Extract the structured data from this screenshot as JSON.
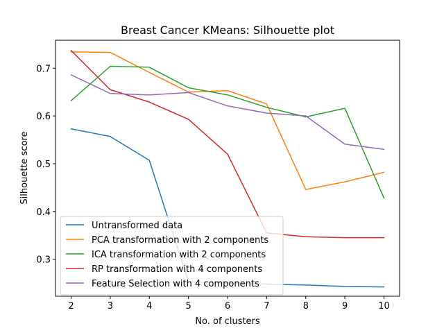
{
  "chart_data": {
    "type": "line",
    "title": "Breast Cancer KMeans: Silhouette plot",
    "xlabel": "No. of clusters",
    "ylabel": "Silhouette score",
    "x": [
      2,
      3,
      4,
      5,
      6,
      7,
      8,
      9,
      10
    ],
    "xticks": [
      "2",
      "3",
      "4",
      "5",
      "6",
      "7",
      "8",
      "9",
      "10"
    ],
    "yticks": [
      "0.3",
      "0.4",
      "0.5",
      "0.6",
      "0.7"
    ],
    "ytick_values": [
      0.3,
      0.4,
      0.5,
      0.6,
      0.7
    ],
    "xlim": [
      1.6,
      10.4
    ],
    "ylim": [
      0.2225,
      0.7585
    ],
    "grid": false,
    "legend_position": "lower-left",
    "series": [
      {
        "name": "Untransformed data",
        "color": "#1f77b4",
        "values": [
          0.573,
          0.557,
          0.507,
          0.253,
          0.25,
          0.248,
          0.246,
          0.243,
          0.242
        ]
      },
      {
        "name": "PCA transformation with 2 components",
        "color": "#ff7f0e",
        "values": [
          0.734,
          0.733,
          0.691,
          0.65,
          0.653,
          0.625,
          0.446,
          0.462,
          0.482
        ]
      },
      {
        "name": "ICA transformation with 2 components",
        "color": "#2ca02c",
        "values": [
          0.632,
          0.704,
          0.702,
          0.659,
          0.644,
          0.618,
          0.598,
          0.616,
          0.428
        ]
      },
      {
        "name": "RP transformation with 4 components",
        "color": "#d62728",
        "values": [
          0.737,
          0.655,
          0.629,
          0.593,
          0.52,
          0.355,
          0.347,
          0.345,
          0.345
        ]
      },
      {
        "name": "Feature Selection with 4 components",
        "color": "#9467bd",
        "values": [
          0.686,
          0.647,
          0.644,
          0.649,
          0.621,
          0.606,
          0.6,
          0.541,
          0.53
        ]
      }
    ]
  }
}
